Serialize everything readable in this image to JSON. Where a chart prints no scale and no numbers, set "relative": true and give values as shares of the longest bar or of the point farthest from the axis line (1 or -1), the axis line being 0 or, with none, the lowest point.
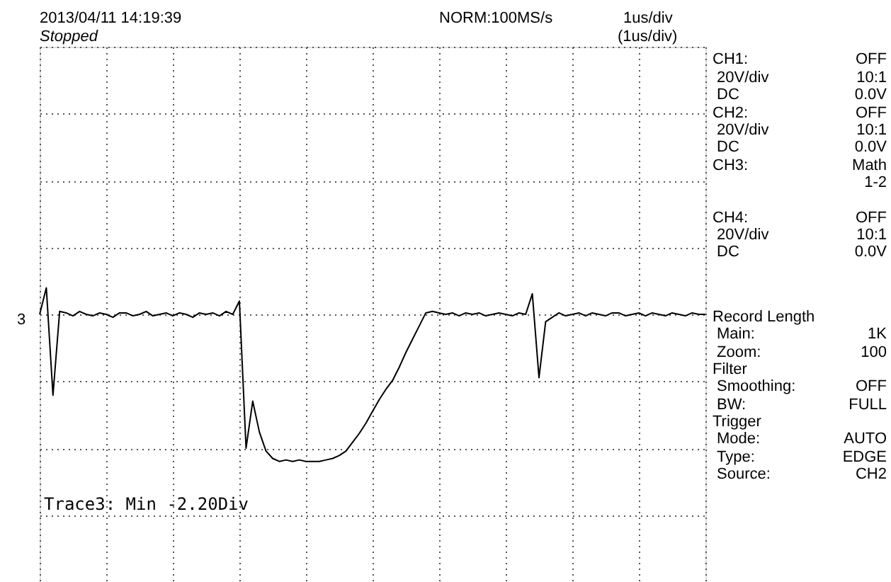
{
  "chart_data": {
    "type": "line",
    "relative": true,
    "color": "#000000",
    "grid": true,
    "categories": [
      null,
      null,
      null,
      null,
      null,
      null,
      null,
      null,
      null,
      null,
      null,
      null,
      null,
      null,
      null,
      null,
      null,
      null,
      null,
      null,
      null,
      null,
      null,
      null,
      null,
      null,
      null,
      null,
      null,
      null,
      null,
      null,
      null,
      null,
      null,
      null,
      null,
      null,
      null,
      null,
      null,
      null,
      null,
      null,
      null,
      null,
      null,
      null,
      null,
      null,
      null,
      null,
      null,
      null,
      null,
      null,
      null,
      null,
      null,
      null,
      null,
      null,
      null,
      null,
      null,
      null,
      null,
      null,
      null,
      null,
      null,
      null,
      null,
      null,
      null,
      null,
      null,
      null,
      null,
      null,
      null,
      null,
      null,
      null,
      null,
      null,
      null,
      null,
      null,
      null,
      null,
      null,
      null,
      null,
      null,
      null,
      null,
      null,
      null,
      null,
      null
    ],
    "values": [
      0,
      0.18,
      -0.55,
      0.02,
      0.01,
      -0.01,
      0.02,
      0,
      -0.01,
      0.01,
      0,
      -0.02,
      0.01,
      0.01,
      -0.01,
      0,
      0.02,
      -0.01,
      0,
      0.01,
      -0.01,
      0.01,
      0,
      -0.02,
      0.01,
      0,
      0.01,
      -0.01,
      0.02,
      0,
      0.09,
      -0.91,
      -0.59,
      -0.8,
      -0.93,
      -0.98,
      -1,
      -0.99,
      -1,
      -0.99,
      -1,
      -1,
      -1,
      -0.99,
      -0.98,
      -0.96,
      -0.93,
      -0.87,
      -0.81,
      -0.74,
      -0.66,
      -0.58,
      -0.51,
      -0.45,
      -0.36,
      -0.26,
      -0.17,
      -0.08,
      0.01,
      0.02,
      0.01,
      0,
      0.01,
      -0.01,
      0.01,
      0,
      0.01,
      -0.01,
      0,
      0.01,
      0,
      -0.01,
      0.01,
      0,
      0.14,
      -0.43,
      -0.05,
      -0.02,
      0.01,
      -0.01,
      0,
      0.01,
      -0.01,
      0.01,
      0,
      -0.01,
      0.01,
      0.01,
      -0.01,
      0,
      0.01,
      -0.01,
      0.01,
      0,
      -0.01,
      0.01,
      0,
      -0.01,
      0.01,
      0,
      0
    ],
    "annotations": [
      "2013/04/11  14:19:39",
      "Stopped",
      "NORM:100MS/s",
      "1us/div",
      "(1us/div)",
      "3",
      "CH1:",
      "OFF",
      "20V/div",
      "10:1",
      "DC",
      "0.0V",
      "CH2:",
      "OFF",
      "20V/div",
      "10:1",
      "DC",
      "0.0V",
      "CH3:",
      "Math",
      "1-2",
      "CH4:",
      "OFF",
      "20V/div",
      "10:1",
      "DC",
      "0.0V",
      "Record Length",
      "Main:",
      "1K",
      "Zoom:",
      "100",
      "Filter",
      "Smoothing:",
      "OFF",
      "BW:",
      "FULL",
      "Trigger",
      "Mode:",
      "AUTO",
      "Type:",
      "EDGE",
      "Source:",
      "CH2",
      "Trace3: Min  -2.20Div"
    ]
  }
}
